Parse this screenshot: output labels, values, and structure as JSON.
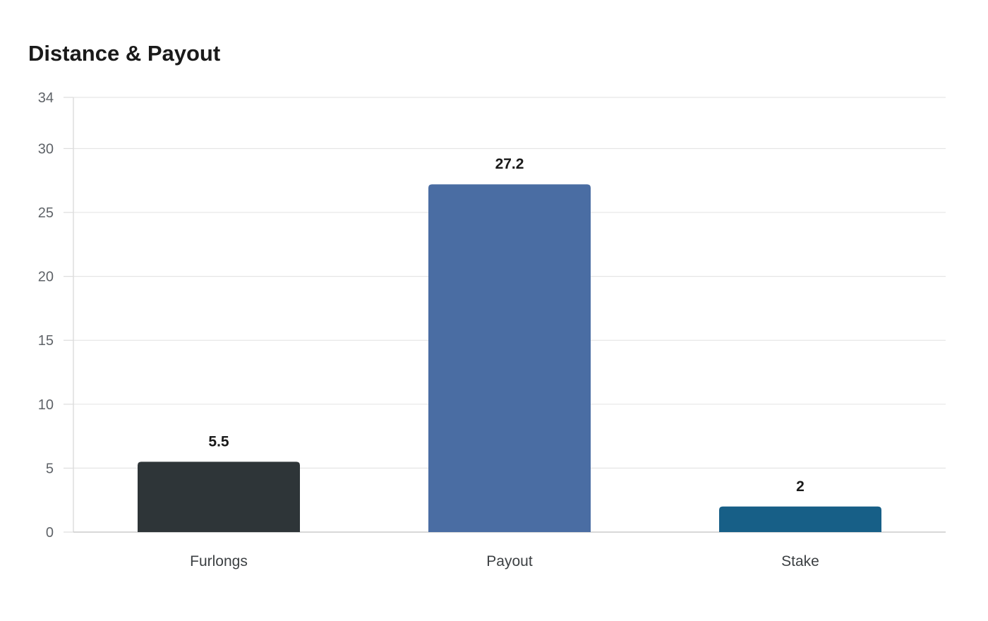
{
  "chart_data": {
    "type": "bar",
    "title": "Distance & Payout",
    "xlabel": "",
    "ylabel": "",
    "categories": [
      "Furlongs",
      "Payout",
      "Stake"
    ],
    "values": [
      5.5,
      27.2,
      2
    ],
    "value_labels": [
      "5.5",
      "27.2",
      "2"
    ],
    "colors": [
      "#2e3538",
      "#4a6da3",
      "#175f87"
    ],
    "ylim": [
      0,
      34
    ],
    "yticks": [
      0,
      5,
      10,
      15,
      20,
      25,
      30,
      34
    ],
    "grid": true,
    "legend": "none"
  }
}
